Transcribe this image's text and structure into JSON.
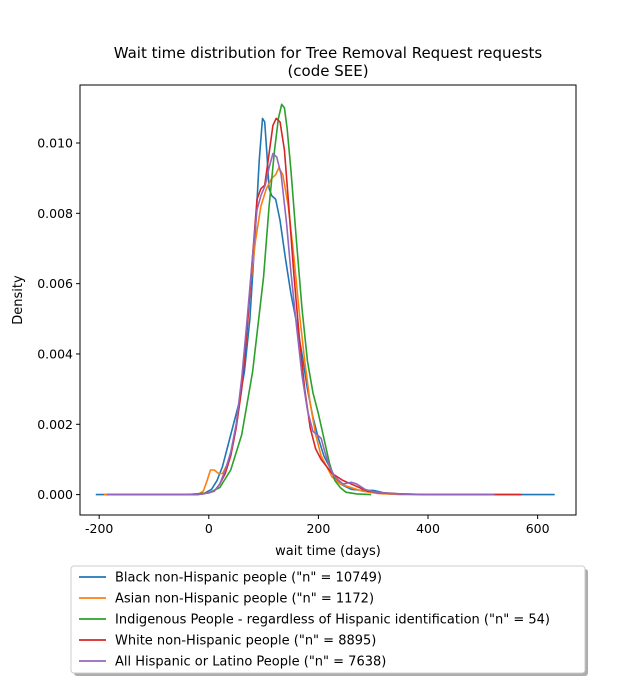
{
  "chart_data": {
    "type": "line",
    "title_line1": "Wait time distribution  for Tree Removal Request requests",
    "title_line2": "(code SEE)",
    "xlabel": "wait time (days)",
    "ylabel": "Density",
    "xlim": [
      -235,
      670
    ],
    "ylim": [
      -0.00058,
      0.01165
    ],
    "xticks": [
      -200,
      0,
      200,
      400,
      600
    ],
    "xtick_labels": [
      "-200",
      "0",
      "200",
      "400",
      "600"
    ],
    "yticks": [
      0.0,
      0.002,
      0.004,
      0.006,
      0.008,
      0.01
    ],
    "ytick_labels": [
      "0.000",
      "0.002",
      "0.004",
      "0.006",
      "0.008",
      "0.010"
    ],
    "grid": false,
    "legend_placement": "below plot",
    "series": [
      {
        "name": "Black non-Hispanic people (\"n\" = 10749)",
        "color": "#1f77b4",
        "points": [
          [
            -205,
            0
          ],
          [
            -50,
            0
          ],
          [
            -10,
            2e-05
          ],
          [
            5,
            0.00015
          ],
          [
            15,
            0.0004
          ],
          [
            25,
            0.0008
          ],
          [
            35,
            0.0014
          ],
          [
            45,
            0.002
          ],
          [
            55,
            0.0026
          ],
          [
            65,
            0.0035
          ],
          [
            75,
            0.005
          ],
          [
            85,
            0.0075
          ],
          [
            92,
            0.0095
          ],
          [
            98,
            0.0107
          ],
          [
            102,
            0.0106
          ],
          [
            106,
            0.0097
          ],
          [
            110,
            0.0087
          ],
          [
            115,
            0.0085
          ],
          [
            122,
            0.0084
          ],
          [
            130,
            0.0078
          ],
          [
            140,
            0.0067
          ],
          [
            150,
            0.0057
          ],
          [
            160,
            0.0049
          ],
          [
            170,
            0.004
          ],
          [
            180,
            0.003
          ],
          [
            190,
            0.0022
          ],
          [
            200,
            0.0016
          ],
          [
            210,
            0.0011
          ],
          [
            220,
            0.0008
          ],
          [
            230,
            0.0005
          ],
          [
            240,
            0.0003
          ],
          [
            260,
            0.00015
          ],
          [
            280,
            0.00012
          ],
          [
            300,
            0.00012
          ],
          [
            320,
            5e-05
          ],
          [
            350,
            2e-05
          ],
          [
            400,
            0
          ],
          [
            630,
            0
          ]
        ]
      },
      {
        "name": "Asian non-Hispanic people (\"n\" = 1172)",
        "color": "#ff7f0e",
        "points": [
          [
            -190,
            0
          ],
          [
            -20,
            0
          ],
          [
            -10,
            0.0001
          ],
          [
            -3,
            0.0004
          ],
          [
            3,
            0.0007
          ],
          [
            10,
            0.0007
          ],
          [
            18,
            0.0006
          ],
          [
            25,
            0.0006
          ],
          [
            35,
            0.0009
          ],
          [
            45,
            0.0015
          ],
          [
            55,
            0.0025
          ],
          [
            65,
            0.004
          ],
          [
            75,
            0.0058
          ],
          [
            85,
            0.0072
          ],
          [
            95,
            0.0082
          ],
          [
            105,
            0.0087
          ],
          [
            115,
            0.009
          ],
          [
            122,
            0.0091
          ],
          [
            128,
            0.0093
          ],
          [
            135,
            0.0091
          ],
          [
            145,
            0.0082
          ],
          [
            155,
            0.0068
          ],
          [
            165,
            0.0052
          ],
          [
            175,
            0.0038
          ],
          [
            185,
            0.0026
          ],
          [
            195,
            0.0017
          ],
          [
            205,
            0.0011
          ],
          [
            215,
            0.0008
          ],
          [
            225,
            0.0005
          ],
          [
            240,
            0.0003
          ],
          [
            260,
            0.0002
          ],
          [
            280,
            0.0001
          ],
          [
            310,
            3e-05
          ],
          [
            350,
            0
          ],
          [
            560,
            0
          ]
        ]
      },
      {
        "name": "Indigenous People - regardless of Hispanic identification (\"n\" = 54)",
        "color": "#2ca02c",
        "points": [
          [
            -40,
            0
          ],
          [
            0,
            5e-05
          ],
          [
            20,
            0.0002
          ],
          [
            40,
            0.0007
          ],
          [
            60,
            0.0017
          ],
          [
            80,
            0.0035
          ],
          [
            100,
            0.0062
          ],
          [
            110,
            0.0082
          ],
          [
            120,
            0.0098
          ],
          [
            127,
            0.0107
          ],
          [
            133,
            0.0111
          ],
          [
            138,
            0.011
          ],
          [
            143,
            0.0104
          ],
          [
            150,
            0.0092
          ],
          [
            160,
            0.0072
          ],
          [
            170,
            0.0053
          ],
          [
            180,
            0.0038
          ],
          [
            190,
            0.0029
          ],
          [
            200,
            0.0023
          ],
          [
            210,
            0.0016
          ],
          [
            220,
            0.0009
          ],
          [
            230,
            0.0004
          ],
          [
            240,
            0.0002
          ],
          [
            250,
            7e-05
          ],
          [
            270,
            2e-05
          ],
          [
            295,
            0
          ]
        ]
      },
      {
        "name": "White non-Hispanic people (\"n\" = 8895)",
        "color": "#d62728",
        "points": [
          [
            -185,
            0
          ],
          [
            -20,
            0
          ],
          [
            0,
            5e-05
          ],
          [
            10,
            0.0001
          ],
          [
            20,
            0.0003
          ],
          [
            30,
            0.0006
          ],
          [
            40,
            0.0011
          ],
          [
            50,
            0.0019
          ],
          [
            60,
            0.003
          ],
          [
            70,
            0.0047
          ],
          [
            80,
            0.0068
          ],
          [
            88,
            0.0084
          ],
          [
            95,
            0.0087
          ],
          [
            102,
            0.0088
          ],
          [
            110,
            0.0097
          ],
          [
            117,
            0.0105
          ],
          [
            123,
            0.0107
          ],
          [
            130,
            0.0106
          ],
          [
            138,
            0.0098
          ],
          [
            146,
            0.0082
          ],
          [
            155,
            0.0063
          ],
          [
            165,
            0.0045
          ],
          [
            175,
            0.003
          ],
          [
            185,
            0.0019
          ],
          [
            195,
            0.0013
          ],
          [
            205,
            0.001
          ],
          [
            215,
            0.0008
          ],
          [
            225,
            0.0006
          ],
          [
            235,
            0.0005
          ],
          [
            245,
            0.0004
          ],
          [
            260,
            0.0003
          ],
          [
            275,
            0.0002
          ],
          [
            290,
            0.0001
          ],
          [
            310,
            5e-05
          ],
          [
            350,
            2e-05
          ],
          [
            400,
            0
          ],
          [
            570,
            0
          ]
        ]
      },
      {
        "name": "All Hispanic or Latino People (\"n\" = 7638)",
        "color": "#9467bd",
        "points": [
          [
            -185,
            0
          ],
          [
            -20,
            0
          ],
          [
            0,
            5e-05
          ],
          [
            10,
            0.0001
          ],
          [
            20,
            0.0003
          ],
          [
            30,
            0.0007
          ],
          [
            40,
            0.0012
          ],
          [
            50,
            0.002
          ],
          [
            60,
            0.0033
          ],
          [
            70,
            0.005
          ],
          [
            80,
            0.0068
          ],
          [
            88,
            0.0081
          ],
          [
            95,
            0.0085
          ],
          [
            103,
            0.0088
          ],
          [
            110,
            0.0093
          ],
          [
            117,
            0.0097
          ],
          [
            124,
            0.0096
          ],
          [
            132,
            0.0091
          ],
          [
            142,
            0.0077
          ],
          [
            150,
            0.0063
          ],
          [
            160,
            0.0048
          ],
          [
            170,
            0.0034
          ],
          [
            180,
            0.0024
          ],
          [
            190,
            0.0018
          ],
          [
            198,
            0.0017
          ],
          [
            205,
            0.0016
          ],
          [
            212,
            0.0012
          ],
          [
            220,
            0.0008
          ],
          [
            230,
            0.0005
          ],
          [
            245,
            0.0003
          ],
          [
            260,
            0.00035
          ],
          [
            270,
            0.0003
          ],
          [
            285,
            0.00015
          ],
          [
            300,
            8e-05
          ],
          [
            330,
            3e-05
          ],
          [
            360,
            1e-05
          ],
          [
            400,
            0
          ],
          [
            520,
            0
          ]
        ]
      }
    ]
  }
}
